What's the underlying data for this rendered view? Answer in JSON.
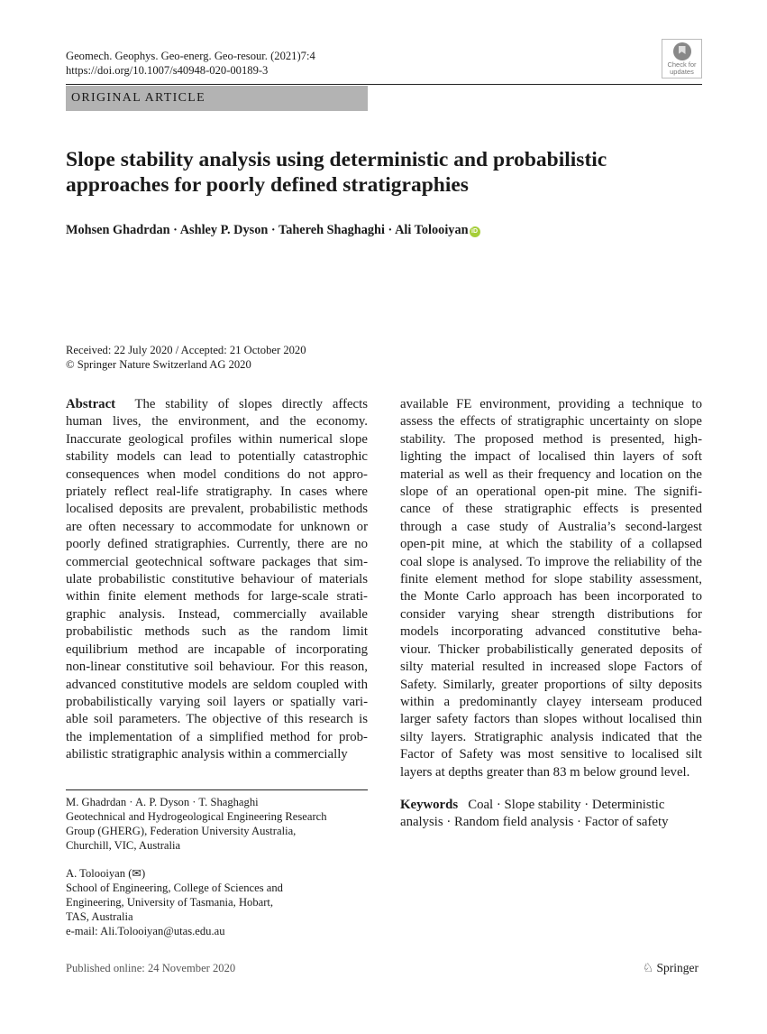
{
  "header": {
    "journal": "Geomech. Geophys. Geo-energ. Geo-resour. (2021)7:4",
    "doi": "https://doi.org/10.1007/s40948-020-00189-3",
    "section": "ORIGINAL ARTICLE",
    "check_updates": [
      "Check for",
      "updates"
    ]
  },
  "title": [
    "Slope stability analysis using deterministic and probabilistic",
    "approaches for poorly defined stratigraphies"
  ],
  "authors": "Mohsen Ghadrdan · Ashley P. Dyson · Tahereh Shaghaghi · Ali Tolooiyan",
  "orcid_icon": "iD",
  "dates": {
    "received": "Received: 22 July 2020 / Accepted: 21 October 2020",
    "copyright": "© Springer Nature Switzerland AG 2020"
  },
  "abstract": {
    "label": "Abstract",
    "first_rest": "  The stability of slopes directly affects",
    "left": [
      "human lives, the environment, and the economy.",
      "Inaccurate geological profiles within numerical slope",
      "stability models can lead to potentially catastrophic",
      "consequences when model conditions do not appro-",
      "priately reflect real-life stratigraphy. In cases where",
      "localised deposits are prevalent, probabilistic methods",
      "are often necessary to accommodate for unknown or",
      "poorly defined stratigraphies. Currently, there are no",
      "commercial geotechnical software packages that sim-",
      "ulate probabilistic constitutive behaviour of materials",
      "within finite element methods for large-scale strati-",
      "graphic analysis. Instead, commercially available",
      "probabilistic methods such as the random limit",
      "equilibrium method are incapable of incorporating",
      "non-linear constitutive soil behaviour. For this reason,",
      "advanced constitutive models are seldom coupled with",
      "probabilistically varying soil layers or spatially vari-",
      "able soil parameters. The objective of this research is",
      "the implementation of a simplified method for prob-",
      "abilistic stratigraphic analysis within a commercially"
    ],
    "right": [
      "available FE environment, providing a technique to",
      "assess the effects of stratigraphic uncertainty on slope",
      "stability. The proposed method is presented, high-",
      "lighting the impact of localised thin layers of soft",
      "material as well as their frequency and location on the",
      "slope of an operational open-pit mine. The signifi-",
      "cance of these stratigraphic effects is presented",
      "through a case study of Australia’s second-largest",
      "open-pit mine, at which the stability of a collapsed",
      "coal slope is analysed. To improve the reliability of the",
      "finite element method for slope stability assessment,",
      "the Monte Carlo approach has been incorporated to",
      "consider varying shear strength distributions for",
      "models incorporating advanced constitutive beha-",
      "viour. Thicker probabilistically generated deposits of",
      "silty material resulted in increased slope Factors of",
      "Safety. Similarly, greater proportions of silty deposits",
      "within a predominantly clayey interseam produced",
      "larger safety factors than slopes without localised thin",
      "silty layers. Stratigraphic analysis indicated that the",
      "Factor of Safety was most sensitive to localised silt",
      "layers at depths greater than 83 m below ground level."
    ]
  },
  "keywords": {
    "label": "Keywords",
    "lines": [
      "   Coal · Slope stability · Deterministic",
      "analysis · Random field analysis · Factor of safety"
    ]
  },
  "affiliations": [
    [
      "M. Ghadrdan · A. P. Dyson · T. Shaghaghi",
      "Geotechnical and Hydrogeological Engineering Research",
      "Group (GHERG), Federation University Australia,",
      "Churchill, VIC, Australia"
    ],
    [
      "A. Tolooiyan (✉)",
      "School of Engineering, College of Sciences and",
      "Engineering, University of Tasmania, Hobart,",
      "TAS, Australia",
      "e-mail: Ali.Tolooiyan@utas.edu.au"
    ]
  ],
  "footer": {
    "published": "Published online: 24 November 2020",
    "publisher": "Springer"
  }
}
